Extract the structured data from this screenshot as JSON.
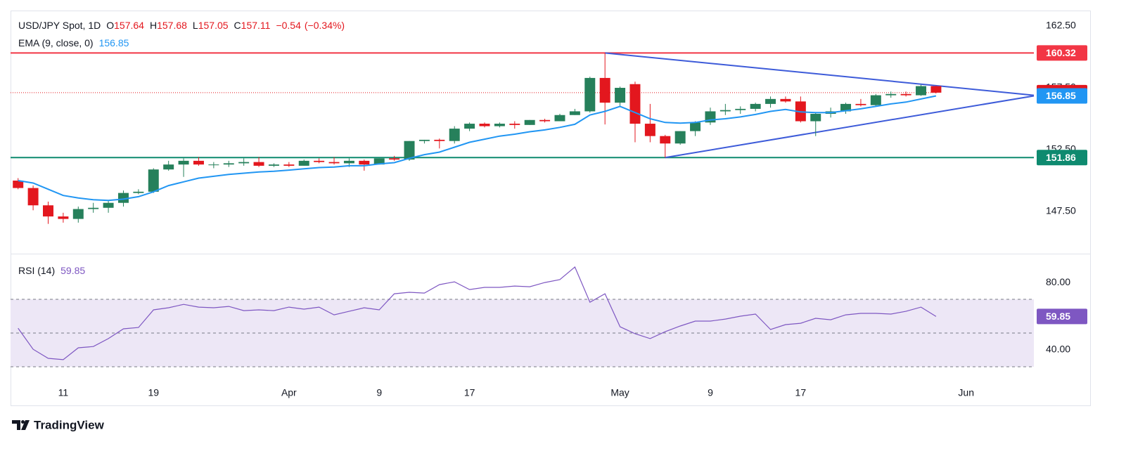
{
  "chart_data": {
    "type": "candlestick",
    "title": "USD/JPY Spot, 1D",
    "ohlc_letters": [
      "O",
      "H",
      "L",
      "C"
    ],
    "change": {
      "value": -0.54,
      "label": "−0.54"
    },
    "change_pct": {
      "value": -0.34,
      "label": "(−0.34%)"
    },
    "categories": [
      null,
      null,
      null,
      "11",
      null,
      null,
      null,
      null,
      null,
      "19",
      null,
      null,
      null,
      null,
      null,
      null,
      null,
      null,
      "Apr",
      null,
      null,
      null,
      null,
      null,
      "9",
      null,
      null,
      null,
      null,
      null,
      "17",
      null,
      null,
      null,
      null,
      null,
      null,
      null,
      null,
      null,
      "May",
      null,
      null,
      null,
      null,
      null,
      "9",
      null,
      null,
      null,
      null,
      null,
      "17",
      null,
      null,
      null,
      null,
      null,
      null,
      null,
      null,
      null,
      null,
      "Jun"
    ],
    "open": [
      150.0,
      149.4,
      148.0,
      147.1,
      146.9,
      147.7,
      147.8,
      148.2,
      149.0,
      149.1,
      150.9,
      151.3,
      151.6,
      151.3,
      151.3,
      151.4,
      151.5,
      151.2,
      151.3,
      151.2,
      151.6,
      151.5,
      151.4,
      151.6,
      151.3,
      151.8,
      151.7,
      153.2,
      153.3,
      153.2,
      154.2,
      154.6,
      154.4,
      154.6,
      154.5,
      154.9,
      154.8,
      155.3,
      155.6,
      158.3,
      156.3,
      157.8,
      154.6,
      153.6,
      153.0,
      154.0,
      154.7,
      155.6,
      155.7,
      155.8,
      156.2,
      156.6,
      156.4,
      154.8,
      155.4,
      155.6,
      156.2,
      156.1,
      156.9,
      157.0,
      156.9,
      157.64,
      null,
      null
    ],
    "high": [
      150.2,
      149.6,
      148.3,
      147.4,
      147.9,
      148.2,
      148.4,
      149.2,
      149.3,
      151.0,
      151.6,
      151.8,
      151.9,
      151.5,
      151.6,
      151.8,
      151.9,
      151.4,
      151.5,
      151.7,
      151.8,
      151.9,
      151.8,
      151.7,
      151.8,
      152.0,
      153.2,
      153.3,
      153.4,
      154.4,
      154.7,
      154.7,
      154.7,
      154.8,
      154.9,
      155.0,
      155.4,
      155.8,
      158.4,
      160.32,
      157.6,
      158.0,
      156.2,
      153.7,
      154.0,
      154.8,
      155.9,
      156.2,
      156.0,
      156.3,
      156.8,
      156.8,
      156.8,
      155.5,
      155.9,
      156.3,
      156.6,
      157.0,
      157.2,
      157.2,
      157.75,
      157.68,
      null,
      null
    ],
    "low": [
      149.3,
      147.6,
      146.5,
      146.6,
      146.6,
      147.4,
      147.4,
      147.9,
      148.9,
      149.0,
      150.8,
      150.3,
      151.2,
      151.0,
      151.1,
      151.2,
      151.1,
      151.1,
      151.1,
      151.2,
      151.4,
      151.3,
      151.1,
      150.8,
      151.3,
      151.6,
      151.6,
      153.0,
      152.6,
      153.0,
      154.0,
      154.3,
      154.3,
      154.2,
      154.5,
      154.7,
      154.8,
      155.3,
      155.5,
      154.54,
      156.0,
      153.1,
      153.1,
      151.86,
      152.9,
      153.6,
      154.5,
      155.3,
      155.4,
      155.6,
      155.9,
      156.3,
      154.7,
      153.6,
      155.1,
      155.4,
      156.0,
      156.0,
      156.7,
      156.8,
      156.85,
      157.05,
      null,
      null
    ],
    "close": [
      149.4,
      148.0,
      147.1,
      146.9,
      147.7,
      147.8,
      148.2,
      149.0,
      149.1,
      150.9,
      151.3,
      151.6,
      151.3,
      151.3,
      151.4,
      151.5,
      151.2,
      151.3,
      151.2,
      151.6,
      151.5,
      151.4,
      151.6,
      151.3,
      151.8,
      151.7,
      153.2,
      153.3,
      153.2,
      154.2,
      154.6,
      154.4,
      154.6,
      154.5,
      154.9,
      154.8,
      155.3,
      155.6,
      158.3,
      156.3,
      157.5,
      154.6,
      153.6,
      153.0,
      154.0,
      154.7,
      155.6,
      155.7,
      155.8,
      156.2,
      156.6,
      156.4,
      154.8,
      155.4,
      155.6,
      156.2,
      156.1,
      156.9,
      157.0,
      156.9,
      157.64,
      157.11,
      null,
      null
    ],
    "up_color": "#26805b",
    "down_color": "#e3171e",
    "ema": {
      "name": "EMA (9, close, 0)",
      "color": "#2196f3",
      "values": [
        150.0,
        149.8,
        149.3,
        148.8,
        148.6,
        148.45,
        148.4,
        148.5,
        148.7,
        149.1,
        149.6,
        149.9,
        150.2,
        150.35,
        150.5,
        150.6,
        150.7,
        150.75,
        150.85,
        150.95,
        151.05,
        151.1,
        151.2,
        151.2,
        151.35,
        151.45,
        151.8,
        152.1,
        152.3,
        152.7,
        153.1,
        153.35,
        153.6,
        153.75,
        153.95,
        154.1,
        154.3,
        154.55,
        155.3,
        155.6,
        156.0,
        155.5,
        155.0,
        154.7,
        154.65,
        154.7,
        154.9,
        155.0,
        155.15,
        155.35,
        155.6,
        155.75,
        155.55,
        155.5,
        155.5,
        155.65,
        155.8,
        156.0,
        156.2,
        156.35,
        156.6,
        156.85,
        null,
        null
      ]
    },
    "xlim": [
      -0.5,
      67.5
    ],
    "ylim": [
      144.15,
      163.75
    ],
    "yticks": [
      {
        "value": 162.5,
        "label": "162.50"
      },
      {
        "value": 157.5,
        "label": "157.50"
      },
      {
        "value": 152.5,
        "label": "152.50"
      },
      {
        "value": 147.5,
        "label": "147.50"
      }
    ],
    "grid": false,
    "hlines": [
      {
        "value": 160.32,
        "color": "#f23645"
      },
      {
        "value": 151.86,
        "color": "#0e8a6f"
      }
    ],
    "trendlines": [
      {
        "x": [
          39,
          67.5
        ],
        "y": [
          160.32,
          156.9
        ]
      },
      {
        "x": [
          43,
          67.5
        ],
        "y": [
          151.86,
          156.85
        ]
      }
    ],
    "trendline_color": "#3d5bd9",
    "rsi": {
      "name": "RSI (14)",
      "color": "#7e57c2",
      "values": [
        52.9,
        40.4,
        35.0,
        34.2,
        41.25,
        42.0,
        46.7,
        52.5,
        53.3,
        63.75,
        65.0,
        67.0,
        65.4,
        65.0,
        65.8,
        63.3,
        63.75,
        63.3,
        65.4,
        64.2,
        65.4,
        60.8,
        62.9,
        65.0,
        63.75,
        73.3,
        74.2,
        73.75,
        78.75,
        80.4,
        75.8,
        77.1,
        77.1,
        77.9,
        77.5,
        80.0,
        81.7,
        89.2,
        68.3,
        73.3,
        53.75,
        49.6,
        46.7,
        50.8,
        54.2,
        57.1,
        57.1,
        58.3,
        60.0,
        61.25,
        52.1,
        55.0,
        55.8,
        58.75,
        57.9,
        60.8,
        61.7,
        61.7,
        61.25,
        62.9,
        65.4,
        59.85,
        null,
        null
      ],
      "ylim": [
        22.5,
        96.7
      ],
      "yticks": [
        {
          "value": 80,
          "label": "80.00"
        },
        {
          "value": 40,
          "label": "40.00"
        }
      ],
      "bands": [
        70,
        50,
        30
      ],
      "band_fill": "#ede7f6"
    }
  },
  "footer": {
    "brand": "TradingView"
  }
}
